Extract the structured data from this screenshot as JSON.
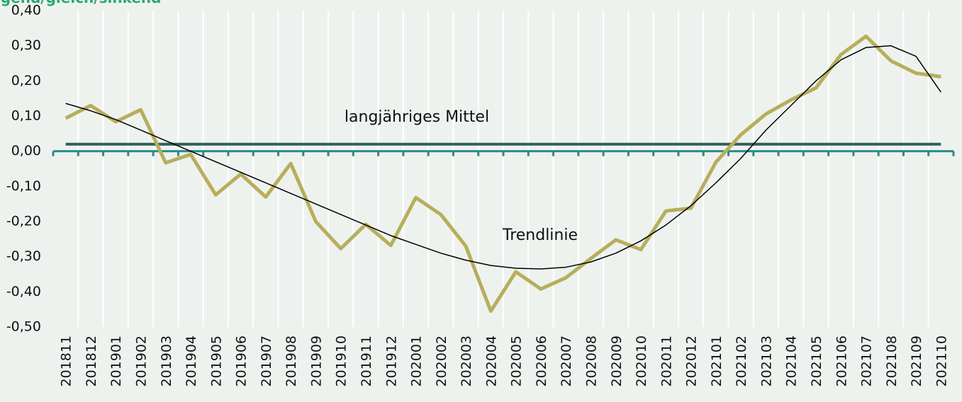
{
  "chart_data": {
    "type": "line",
    "title": "igend/gleich/sinkend",
    "categories": [
      "201811",
      "201812",
      "201901",
      "201902",
      "201903",
      "201904",
      "201905",
      "201906",
      "201907",
      "201908",
      "201909",
      "201910",
      "201911",
      "201912",
      "202001",
      "202002",
      "202003",
      "202004",
      "202005",
      "202006",
      "202007",
      "202008",
      "202009",
      "202010",
      "202011",
      "202012",
      "202101",
      "202102",
      "202103",
      "202104",
      "202105",
      "202106",
      "202107",
      "202108",
      "202109",
      "202110"
    ],
    "series": [
      {
        "color": "#b7ae5c",
        "values": [
          0.094,
          0.13,
          0.084,
          0.118,
          -0.033,
          -0.009,
          -0.124,
          -0.065,
          -0.13,
          -0.035,
          -0.2,
          -0.277,
          -0.208,
          -0.268,
          -0.132,
          -0.18,
          -0.27,
          -0.455,
          -0.343,
          -0.392,
          -0.36,
          -0.305,
          -0.252,
          -0.28,
          -0.17,
          -0.162,
          -0.031,
          0.047,
          0.106,
          0.146,
          0.18,
          0.275,
          0.327,
          0.257,
          0.222,
          0.212
        ]
      },
      {
        "color": "#000000",
        "values": [
          0.136,
          0.115,
          0.09,
          0.06,
          0.03,
          0.0,
          -0.03,
          -0.06,
          -0.09,
          -0.12,
          -0.15,
          -0.18,
          -0.21,
          -0.24,
          -0.265,
          -0.29,
          -0.31,
          -0.325,
          -0.333,
          -0.335,
          -0.33,
          -0.315,
          -0.29,
          -0.255,
          -0.21,
          -0.155,
          -0.09,
          -0.02,
          0.06,
          0.13,
          0.2,
          0.26,
          0.295,
          0.3,
          0.27,
          0.168
        ]
      }
    ],
    "mean_line": {
      "value": 0.02,
      "color": "#2e5f5c",
      "label": "langjähriges Mittel"
    },
    "trend_label": "Trendlinie",
    "ylim": [
      -0.5,
      0.4
    ],
    "yticks": [
      {
        "value": -0.5,
        "label": "-0,50"
      },
      {
        "value": -0.4,
        "label": "-0,40"
      },
      {
        "value": -0.3,
        "label": "-0,30"
      },
      {
        "value": -0.2,
        "label": "-0,20"
      },
      {
        "value": -0.1,
        "label": "-0,10"
      },
      {
        "value": 0,
        "label": "0,00"
      },
      {
        "value": 0.1,
        "label": "0,10"
      },
      {
        "value": 0.2,
        "label": "0,20"
      },
      {
        "value": 0.3,
        "label": "0,30"
      },
      {
        "value": 0.4,
        "label": "0,40"
      }
    ],
    "axis_color": "#2a8c88",
    "grid": true
  }
}
